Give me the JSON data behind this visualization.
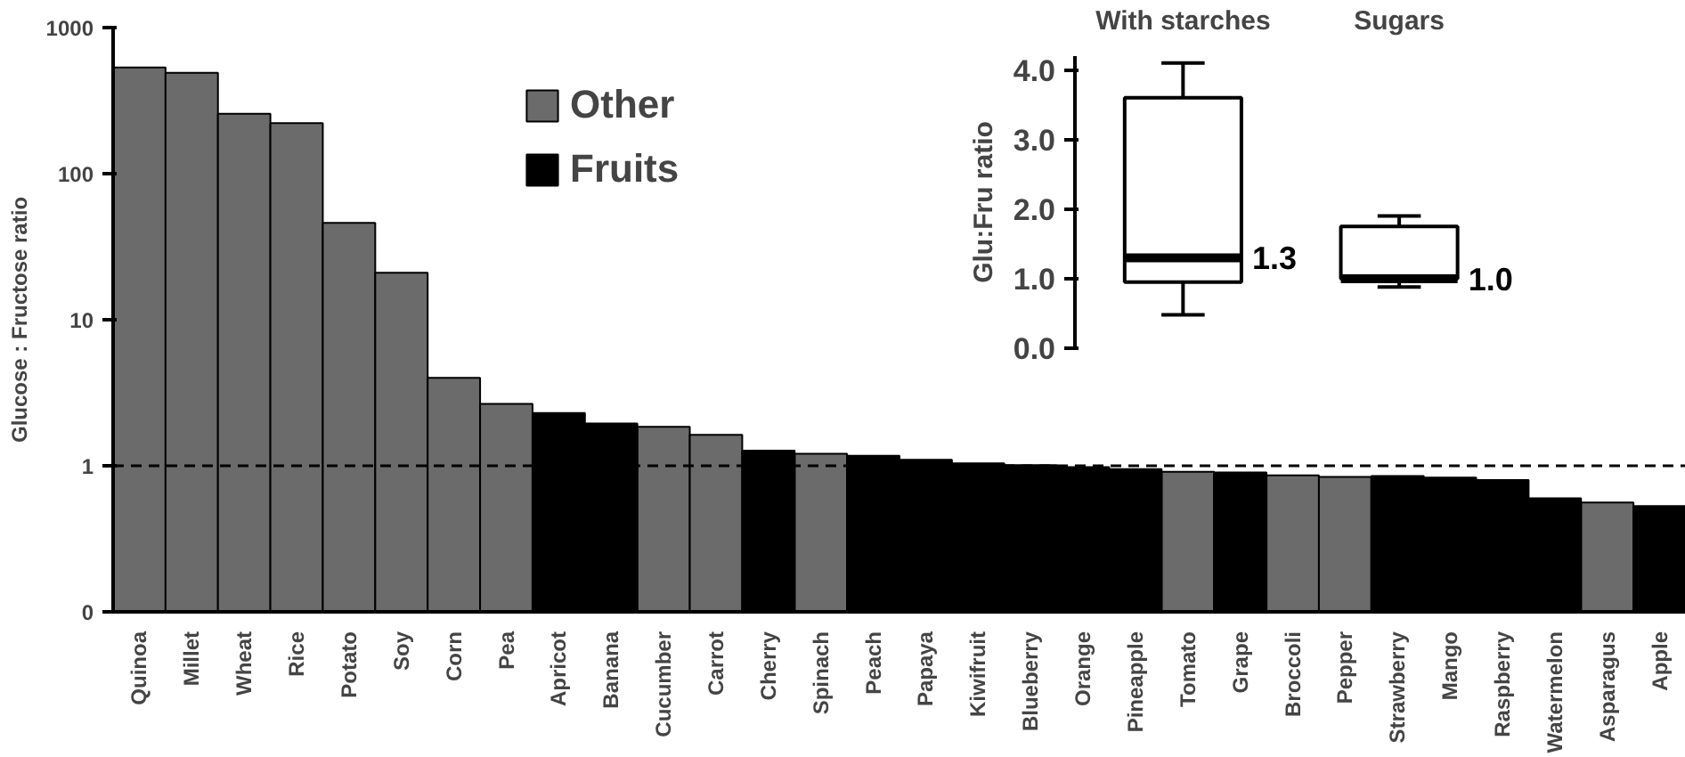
{
  "chart_data": [
    {
      "type": "bar",
      "ylabel": "Glucose : Fructose ratio",
      "categories": [
        "Quinoa",
        "Millet",
        "Wheat",
        "Rice",
        "Potato",
        "Soy",
        "Corn",
        "Pea",
        "Apricot",
        "Banana",
        "Cucumber",
        "Carrot",
        "Cherry",
        "Spinach",
        "Peach",
        "Papaya",
        "Kiwifruit",
        "Blueberry",
        "Orange",
        "Pineapple",
        "Tomato",
        "Grape",
        "Broccoli",
        "Pepper",
        "Strawberry",
        "Mango",
        "Raspberry",
        "Watermelon",
        "Asparagus",
        "Apple"
      ],
      "series": [
        {
          "name": "Other",
          "color": "#6b6b6b",
          "values": [
            533,
            490,
            257,
            222,
            46,
            21,
            4.0,
            2.65,
            null,
            null,
            1.85,
            1.63,
            null,
            1.21,
            null,
            null,
            null,
            null,
            null,
            null,
            0.91,
            null,
            0.86,
            0.84,
            null,
            null,
            null,
            null,
            0.56,
            null
          ]
        },
        {
          "name": "Fruits",
          "color": "#000000",
          "values": [
            null,
            null,
            null,
            null,
            null,
            null,
            null,
            null,
            2.3,
            1.95,
            null,
            null,
            1.27,
            null,
            1.17,
            1.1,
            1.04,
            1.01,
            0.98,
            0.95,
            null,
            0.9,
            null,
            null,
            0.85,
            0.83,
            0.8,
            0.6,
            null,
            0.53
          ]
        }
      ],
      "log": true,
      "ylim": [
        0.1,
        1000
      ],
      "yticks": [
        {
          "value": 0.1,
          "label": "0"
        },
        1,
        10,
        100,
        1000
      ],
      "ref_lines": [
        {
          "axis": "y",
          "value": 1,
          "label": null,
          "color": "#000000",
          "line_style": "dashed"
        }
      ],
      "legend": "top",
      "grid": false
    },
    {
      "type": "box",
      "ylabel": "Glu:Fru ratio",
      "categories": [
        "With starches",
        "Sugars"
      ],
      "boxes": [
        {
          "low": 0.48,
          "q1": 0.95,
          "median": 1.3,
          "q3": 3.6,
          "high": 4.1
        },
        {
          "low": 0.88,
          "q1": 1.0,
          "median": 1.0,
          "q3": 1.75,
          "high": 1.9
        }
      ],
      "ylim": [
        0,
        4.2
      ],
      "yticks": [
        {
          "value": 0,
          "label": "0.0"
        },
        {
          "value": 1,
          "label": "1.0"
        },
        {
          "value": 2,
          "label": "2.0"
        },
        {
          "value": 3,
          "label": "3.0"
        },
        {
          "value": 4,
          "label": "4.0"
        }
      ],
      "annotations": [
        {
          "text": "1.3",
          "x": "With starches",
          "y": 1.3
        },
        {
          "text": "1.0",
          "x": "Sugars",
          "y": 1.0
        }
      ],
      "grid": false
    }
  ]
}
